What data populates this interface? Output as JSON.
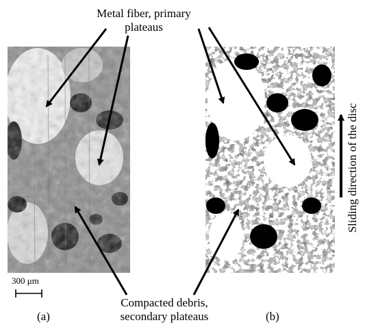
{
  "figure": {
    "top_annotation": {
      "line1": "Metal fiber, primary",
      "line2": "plateaus"
    },
    "bottom_annotation": {
      "line1": "Compacted debris,",
      "line2": "secondary plateaus"
    },
    "panel_a_label": "(a)",
    "panel_b_label": "(b)",
    "scale_bar_label": "300 μm",
    "direction_label": "Sliding direction of the disc",
    "colors": {
      "arrow": "#000000",
      "background": "#ffffff",
      "surface_dark": "#1a1a1a",
      "surface_mid": "#7a7a7a",
      "surface_light": "#f2f2f2"
    }
  }
}
